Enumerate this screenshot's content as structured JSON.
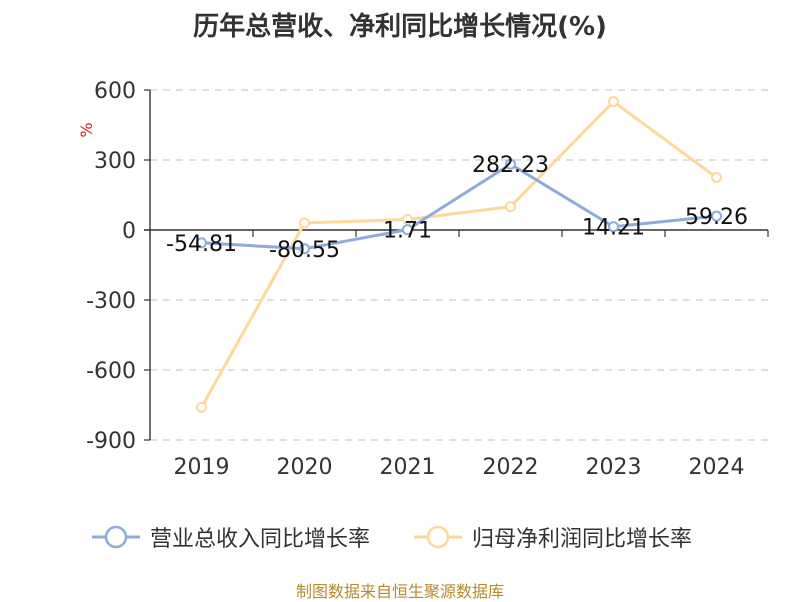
{
  "chart_data": {
    "type": "line",
    "title": "历年总营收、净利同比增长情况(%)",
    "ylabel": "%",
    "categories": [
      "2019",
      "2020",
      "2021",
      "2022",
      "2023",
      "2024"
    ],
    "ylim": [
      -900,
      600
    ],
    "yticks": [
      600,
      300,
      0,
      -300,
      -600,
      -900
    ],
    "grid": true,
    "legend_position": "bottom",
    "series": [
      {
        "name": "营业总收入同比增长率",
        "values": [
          -54.81,
          -80.55,
          1.71,
          282.23,
          14.21,
          59.26
        ],
        "data_labels": [
          "-54.81",
          "-80.55",
          "1.71",
          "282.23",
          "14.21",
          "59.26"
        ],
        "color": "#8eacd9"
      },
      {
        "name": "归母净利润同比增长率",
        "values": [
          -760,
          30,
          45,
          100,
          550,
          225
        ],
        "color": "#fcd99a"
      }
    ]
  },
  "source": "制图数据来自恒生聚源数据库"
}
